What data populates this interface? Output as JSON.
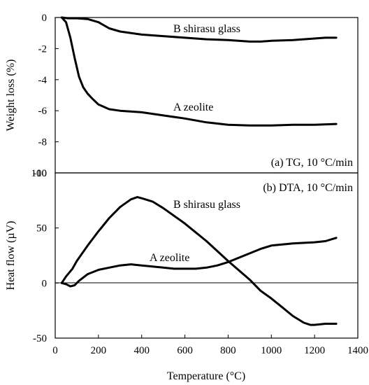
{
  "chart_data": [
    {
      "type": "line",
      "panel_label": "(a) TG, 10 °C/min",
      "ylabel": "Weight loss (%)",
      "ylim": [
        -10,
        0
      ],
      "yticks": [
        0,
        -2,
        -4,
        -6,
        -8,
        -10
      ],
      "ytick_labels": [
        "0",
        "-2",
        "-4",
        "-6",
        "-8",
        "-10"
      ],
      "xlim": [
        0,
        1400
      ],
      "series": [
        {
          "name": "B shirasu glass",
          "x": [
            30,
            60,
            100,
            150,
            200,
            250,
            300,
            400,
            500,
            600,
            700,
            800,
            900,
            950,
            1000,
            1100,
            1200,
            1250,
            1300
          ],
          "y": [
            0,
            -0.05,
            -0.05,
            -0.1,
            -0.3,
            -0.7,
            -0.9,
            -1.1,
            -1.2,
            -1.3,
            -1.4,
            -1.45,
            -1.55,
            -1.55,
            -1.5,
            -1.45,
            -1.35,
            -1.3,
            -1.3
          ]
        },
        {
          "name": "A zeolite",
          "x": [
            30,
            50,
            70,
            90,
            110,
            130,
            150,
            170,
            200,
            250,
            300,
            400,
            500,
            600,
            700,
            800,
            900,
            1000,
            1100,
            1200,
            1300
          ],
          "y": [
            0,
            -0.3,
            -1.3,
            -2.6,
            -3.8,
            -4.5,
            -4.9,
            -5.2,
            -5.6,
            -5.9,
            -6.0,
            -6.1,
            -6.3,
            -6.5,
            -6.75,
            -6.9,
            -6.95,
            -6.95,
            -6.9,
            -6.9,
            -6.85
          ]
        }
      ]
    },
    {
      "type": "line",
      "panel_label": "(b) DTA, 10 °C/min",
      "ylabel": "Heat flow (µV)",
      "ylim": [
        -50,
        100
      ],
      "yticks": [
        100,
        50,
        0,
        -50
      ],
      "ytick_labels": [
        "100",
        "50",
        "0",
        "-50"
      ],
      "xlim": [
        0,
        1400
      ],
      "xticks": [
        0,
        200,
        400,
        600,
        800,
        1000,
        1200,
        1400
      ],
      "xtick_labels": [
        "0",
        "200",
        "400",
        "600",
        "800",
        "1000",
        "1200",
        "1400"
      ],
      "xlabel": "Temperature (°C)",
      "series": [
        {
          "name": "B shirasu glass",
          "x": [
            30,
            50,
            80,
            100,
            150,
            200,
            250,
            300,
            350,
            380,
            400,
            450,
            500,
            600,
            700,
            800,
            900,
            950,
            1000,
            1050,
            1100,
            1150,
            1180,
            1200,
            1250,
            1300
          ],
          "y": [
            0,
            6,
            13,
            20,
            34,
            47,
            59,
            69,
            76,
            78,
            77,
            74,
            68,
            54,
            38,
            20,
            3,
            -7,
            -14,
            -22,
            -30,
            -36,
            -38,
            -38,
            -37,
            -37
          ]
        },
        {
          "name": "A zeolite",
          "x": [
            30,
            50,
            70,
            90,
            110,
            150,
            200,
            250,
            300,
            350,
            400,
            450,
            500,
            550,
            600,
            650,
            700,
            750,
            800,
            850,
            900,
            950,
            1000,
            1100,
            1200,
            1250,
            1300
          ],
          "y": [
            0,
            -1,
            -3,
            -2,
            2,
            8,
            12,
            14,
            16,
            17,
            16,
            15,
            14,
            13,
            13,
            13,
            14,
            16,
            19,
            23,
            27,
            31,
            34,
            36,
            37,
            38,
            41
          ]
        }
      ]
    }
  ],
  "annotations": {
    "tg_b": "B shirasu glass",
    "tg_a": "A zeolite",
    "dta_b": "B shirasu glass",
    "dta_a": "A zeolite"
  }
}
